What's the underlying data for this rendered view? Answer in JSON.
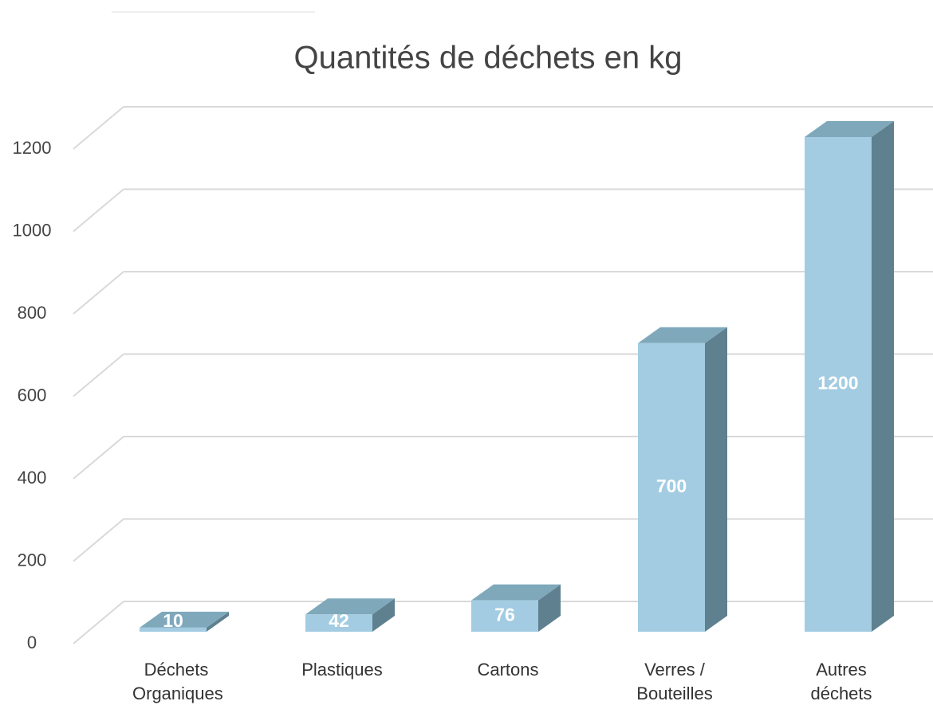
{
  "chart_data": {
    "type": "bar3d",
    "title": "Quantités de déchets en kg",
    "categories": [
      "Déchets Organiques",
      "Plastiques",
      "Cartons",
      "Verres / Bouteilles",
      "Autres déchets"
    ],
    "values": [
      10,
      42,
      76,
      700,
      1200
    ],
    "color": "#a3cce2",
    "ylim": [
      0,
      1200
    ],
    "yticks": [
      0,
      200,
      400,
      600,
      800,
      1000,
      1200
    ],
    "grid": true
  }
}
